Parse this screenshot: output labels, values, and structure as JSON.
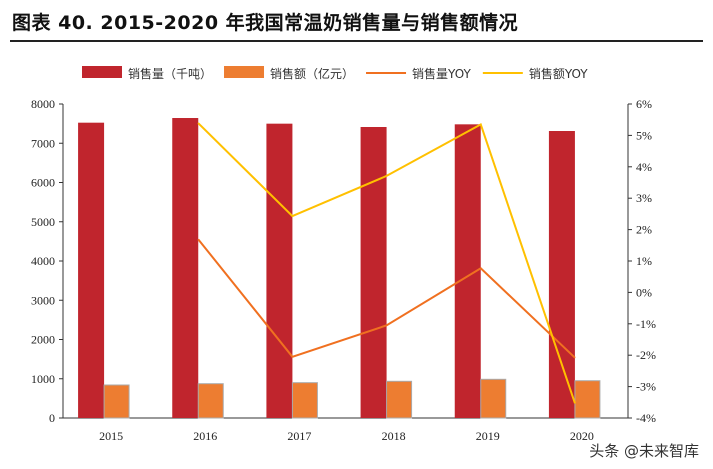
{
  "title": "图表 40. 2015-2020 年我国常温奶销售量与销售额情况",
  "watermark": "头条 @未来智库",
  "chart_data": {
    "type": "bar",
    "categories": [
      "2015",
      "2016",
      "2017",
      "2018",
      "2019",
      "2020"
    ],
    "series": [
      {
        "name": "销售量（千吨）",
        "type": "bar",
        "axis": "left",
        "color": "#C0252D",
        "values": [
          7524,
          7643,
          7499,
          7414,
          7482,
          7312
        ]
      },
      {
        "name": "销售额（亿元）",
        "type": "bar",
        "axis": "left",
        "color": "#ED7D31",
        "values": [
          841,
          874,
          900,
          935,
          986,
          950
        ]
      },
      {
        "name": "销售量YOY",
        "type": "line",
        "axis": "right",
        "color": "#F07020",
        "values": [
          null,
          1.69,
          -2.05,
          -1.05,
          0.77,
          -2.08
        ]
      },
      {
        "name": "销售额YOY",
        "type": "line",
        "axis": "right",
        "color": "#FFC000",
        "values": [
          null,
          5.39,
          2.43,
          3.71,
          5.35,
          -3.53
        ]
      }
    ],
    "left_axis": {
      "ylim": [
        0,
        8000
      ],
      "ticks": [
        "0",
        "1000",
        "2000",
        "3000",
        "4000",
        "5000",
        "6000",
        "7000",
        "8000"
      ]
    },
    "right_axis": {
      "ylim": [
        -4,
        6
      ],
      "unit": "%",
      "ticks": [
        "-4%",
        "-3%",
        "-2%",
        "-1%",
        "0%",
        "1%",
        "2%",
        "3%",
        "4%",
        "5%",
        "6%"
      ]
    },
    "legend_position": "top",
    "grid": false
  }
}
